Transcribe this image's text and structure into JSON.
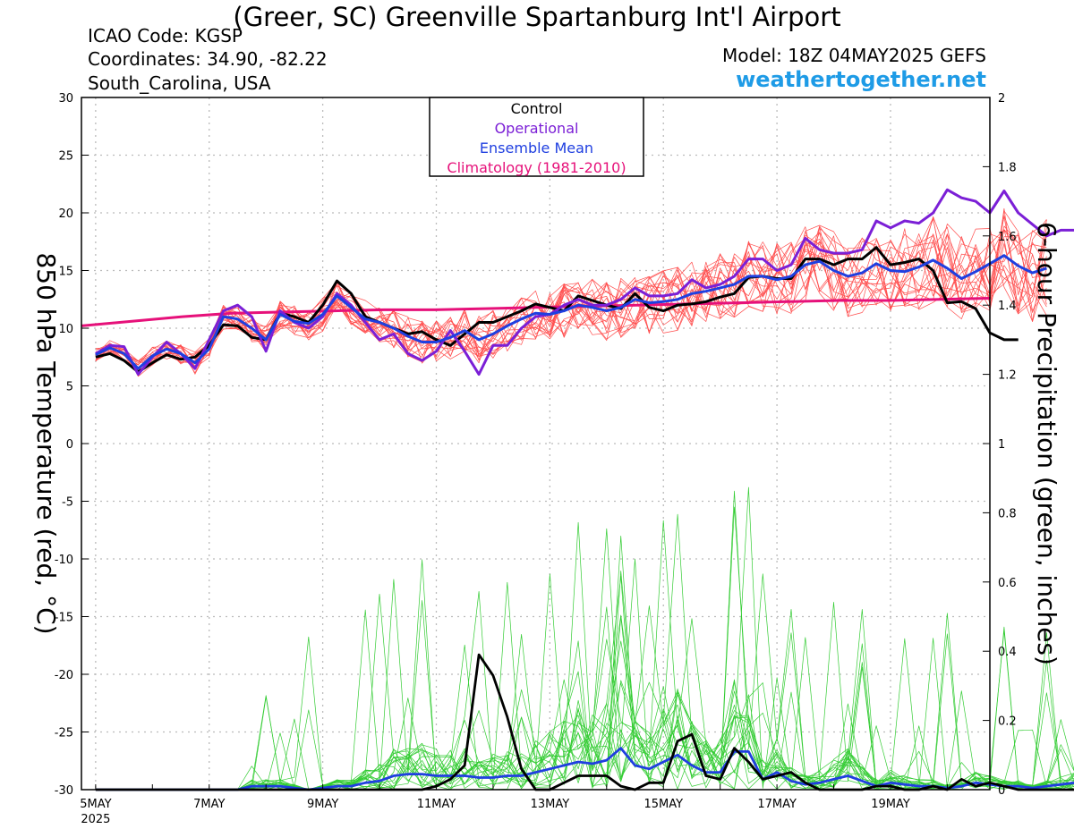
{
  "header": {
    "title": "(Greer, SC) Greenville Spartanburg Int'l Airport",
    "icao": "ICAO Code: KGSP",
    "coordinates": "Coordinates: 34.90, -82.22",
    "region": "South_Carolina, USA",
    "model": "Model: 18Z 04MAY2025 GEFS",
    "site": "weathertogether.net"
  },
  "colors": {
    "temperature_members": "#FF4D4D",
    "precipitation_members": "#33CC33",
    "control": "#000000",
    "operational": "#7B1FD6",
    "ensemble_mean": "#1F3FE0",
    "climatology": "#E6117A",
    "gridlines": "#BBBBBB"
  },
  "chart_data": {
    "type": "line",
    "title": "(Greer, SC) Greenville Spartanburg Int'l Airport",
    "ylabel_left": "850 hPa Temperature (red, °C)",
    "ylabel_right": "6-hour Precipitation (green, inches)",
    "y_left_lim": [
      -30,
      30
    ],
    "y_left_ticks": [
      "30",
      "25",
      "20",
      "15",
      "10",
      "5",
      "0",
      "-5",
      "-10",
      "-15",
      "-20",
      "-25",
      "-30"
    ],
    "y_right_lim": [
      0,
      2
    ],
    "y_right_ticks": [
      "2",
      "1.8",
      "1.6",
      "1.4",
      "1.2",
      "1",
      "0.8",
      "0.6",
      "0.4",
      "0.2",
      "0"
    ],
    "x_unit": "days from 00Z 5 May 2025 (6-hourly steps)",
    "x_lim": [
      -0.25,
      15.75
    ],
    "x_ticks": [
      {
        "x": 0,
        "label": "5MAY",
        "sub": "2025"
      },
      {
        "x": 2,
        "label": "7MAY",
        "sub": ""
      },
      {
        "x": 4,
        "label": "9MAY",
        "sub": ""
      },
      {
        "x": 6,
        "label": "11MAY",
        "sub": ""
      },
      {
        "x": 8,
        "label": "13MAY",
        "sub": ""
      },
      {
        "x": 10,
        "label": "15MAY",
        "sub": ""
      },
      {
        "x": 12,
        "label": "17MAY",
        "sub": ""
      },
      {
        "x": 14,
        "label": "19MAY",
        "sub": ""
      }
    ],
    "grid": true,
    "legend_position": "top-center",
    "legend": [
      {
        "label": "Control",
        "color": "#000000"
      },
      {
        "label": "Operational",
        "color": "#7B1FD6"
      },
      {
        "label": "Ensemble Mean",
        "color": "#1F3FE0"
      },
      {
        "label": "Climatology (1981-2010)",
        "color": "#E6117A"
      }
    ],
    "temperature": {
      "control": [
        7.5,
        7.8,
        7.2,
        6.2,
        7.0,
        7.7,
        7.3,
        7.5,
        8.5,
        10.3,
        10.2,
        9.2,
        9.0,
        11.3,
        11.0,
        10.5,
        12.0,
        14.1,
        13.0,
        11.0,
        10.5,
        10.0,
        9.5,
        9.7,
        9.0,
        8.5,
        9.5,
        10.5,
        10.5,
        11.0,
        11.5,
        12.1,
        11.8,
        11.5,
        12.8,
        12.4,
        12.0,
        11.7,
        13.0,
        11.8,
        11.5,
        12.0,
        12.1,
        12.3,
        12.7,
        13.0,
        14.4,
        14.5,
        14.3,
        14.3,
        16.0,
        16.0,
        15.5,
        16.0,
        16.0,
        17.0,
        15.5,
        15.7,
        16.0,
        15.0,
        12.2,
        12.3,
        11.7,
        9.6,
        9.0,
        9.0
      ],
      "operational": [
        7.8,
        8.5,
        8.4,
        6.0,
        7.5,
        8.8,
        7.8,
        6.5,
        9.0,
        11.5,
        12.0,
        11.0,
        8.0,
        11.5,
        10.5,
        10.0,
        11.0,
        13.0,
        12.0,
        10.5,
        9.0,
        9.5,
        7.8,
        7.2,
        8.0,
        9.8,
        8.0,
        6.0,
        8.5,
        8.5,
        10.0,
        11.0,
        11.2,
        12.0,
        12.5,
        12.0,
        12.0,
        12.5,
        13.5,
        12.8,
        12.8,
        13.0,
        14.2,
        13.5,
        13.8,
        14.5,
        16.0,
        16.0,
        15.0,
        15.5,
        17.8,
        16.8,
        16.5,
        16.5,
        16.8,
        19.3,
        18.7,
        19.3,
        19.1,
        20.0,
        22.0,
        21.3,
        21.0,
        20.0,
        21.9,
        20.0,
        19.0,
        18.0,
        18.5,
        18.5
      ],
      "ensemble_mean": [
        7.7,
        8.3,
        7.8,
        6.5,
        7.6,
        8.2,
        7.8,
        7.0,
        8.2,
        11.0,
        10.8,
        10.0,
        9.0,
        11.2,
        10.6,
        10.4,
        11.2,
        12.8,
        11.8,
        10.8,
        10.5,
        10.0,
        9.3,
        8.8,
        8.8,
        9.2,
        9.8,
        9.0,
        9.5,
        10.2,
        10.8,
        11.3,
        11.2,
        11.5,
        12.0,
        11.8,
        11.5,
        11.8,
        12.5,
        12.2,
        12.3,
        12.5,
        13.0,
        13.2,
        13.5,
        13.8,
        14.5,
        14.5,
        14.2,
        14.5,
        15.5,
        15.8,
        15.0,
        14.5,
        14.8,
        15.6,
        15.0,
        14.9,
        15.3,
        15.9,
        15.2,
        14.3,
        14.9,
        15.6,
        16.3,
        15.4,
        14.8,
        15.2
      ]
    },
    "climatology": [
      10.2,
      10.6,
      11.0,
      11.3,
      11.4,
      11.5,
      11.6,
      11.6,
      11.7,
      11.8,
      11.9,
      12.0,
      12.1,
      12.2,
      12.3,
      12.4,
      12.4,
      12.5,
      12.6
    ],
    "precipitation": {
      "control": [
        0,
        0,
        0,
        0,
        0,
        0,
        0,
        0,
        0,
        0,
        0,
        0,
        0,
        0,
        0,
        0,
        0,
        0,
        0,
        0,
        0,
        0,
        0,
        0,
        0.01,
        0.03,
        0.07,
        0.39,
        0.33,
        0.21,
        0.06,
        0,
        0,
        0.02,
        0.04,
        0.04,
        0.04,
        0.01,
        0,
        0.02,
        0.02,
        0.14,
        0.16,
        0.04,
        0.03,
        0.12,
        0.08,
        0.03,
        0.04,
        0.05,
        0.02,
        0,
        0,
        0,
        0,
        0.01,
        0.01,
        0,
        0,
        0.01,
        0,
        0.03,
        0.01,
        0.02,
        0.01,
        0,
        0,
        0,
        0,
        0
      ],
      "ensemble_mean": [
        0,
        0,
        0,
        0,
        0,
        0,
        0,
        0,
        0,
        0,
        0,
        0.01,
        0.01,
        0.01,
        0.005,
        0,
        0.005,
        0.01,
        0.01,
        0.02,
        0.025,
        0.04,
        0.045,
        0.045,
        0.04,
        0.04,
        0.04,
        0.035,
        0.035,
        0.04,
        0.04,
        0.05,
        0.06,
        0.07,
        0.08,
        0.075,
        0.085,
        0.12,
        0.07,
        0.06,
        0.08,
        0.1,
        0.07,
        0.05,
        0.05,
        0.11,
        0.11,
        0.03,
        0.05,
        0.025,
        0.015,
        0.02,
        0.03,
        0.04,
        0.025,
        0.01,
        0.02,
        0.015,
        0.01,
        0.01,
        0.005,
        0.01,
        0.02,
        0.015,
        0.01,
        0.01,
        0.005,
        0.01,
        0.015,
        0.02,
        0.01
      ]
    }
  }
}
